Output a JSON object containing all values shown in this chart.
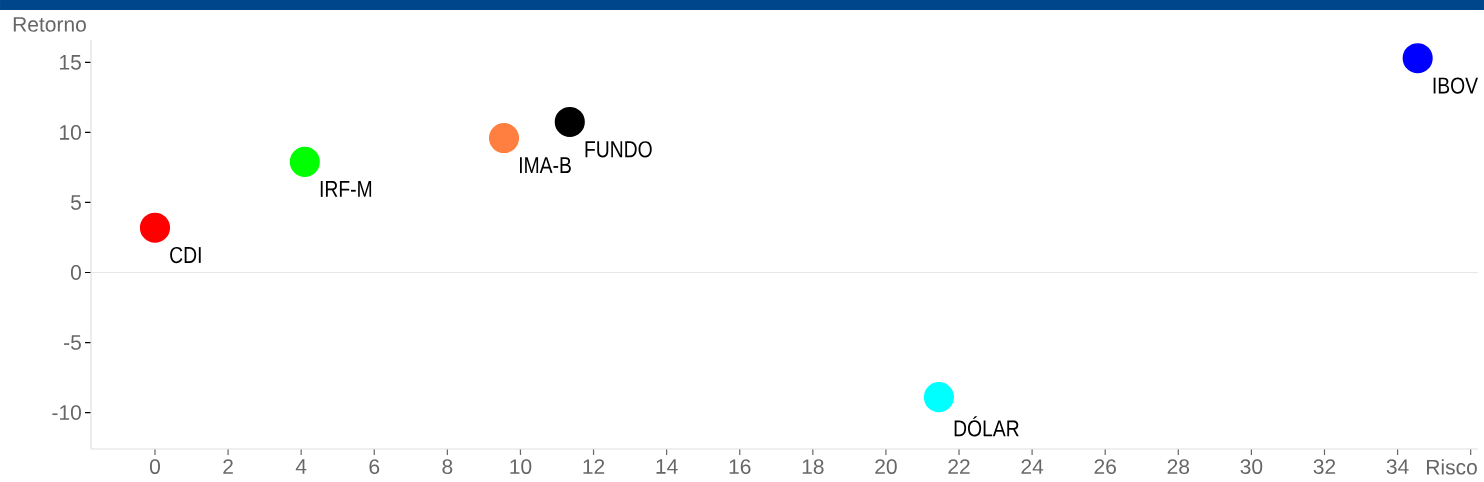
{
  "chart_data": {
    "type": "scatter",
    "xlabel": "Risco",
    "ylabel": "Retorno",
    "xlim": [
      -1.75,
      36.2
    ],
    "ylim": [
      -12.6,
      16.6
    ],
    "xticks": [
      0,
      2,
      4,
      6,
      8,
      10,
      12,
      14,
      16,
      18,
      20,
      22,
      24,
      26,
      28,
      30,
      32,
      34,
      {
        "value": 36,
        "label": null
      }
    ],
    "yticks": [
      -10,
      -5,
      0,
      5,
      10,
      15
    ],
    "marker": "circle",
    "ref_lines": [
      {
        "axis": "y",
        "value": 0,
        "color": "#e6e6e6"
      }
    ],
    "series": [
      {
        "x": [
          0.0,
          4.1,
          9.55,
          11.35,
          34.55,
          21.45
        ],
        "values": [
          3.2,
          7.9,
          9.6,
          10.75,
          15.3,
          -8.9
        ],
        "colors": [
          "#ff0000",
          "#00ff00",
          "#ff7f40",
          "#000000",
          "#0000ff",
          "#00ffff"
        ]
      }
    ],
    "annotations": [
      {
        "text": "CDI",
        "x": 0.0,
        "y": 3.2
      },
      {
        "text": "IRF-M",
        "x": 4.1,
        "y": 7.9
      },
      {
        "text": "IMA-B",
        "x": 9.55,
        "y": 9.6
      },
      {
        "text": "FUNDO",
        "x": 11.35,
        "y": 10.75
      },
      {
        "text": "IBOV",
        "x": 34.55,
        "y": 15.3
      },
      {
        "text": "DÓLAR",
        "x": 21.45,
        "y": -8.9
      }
    ]
  }
}
